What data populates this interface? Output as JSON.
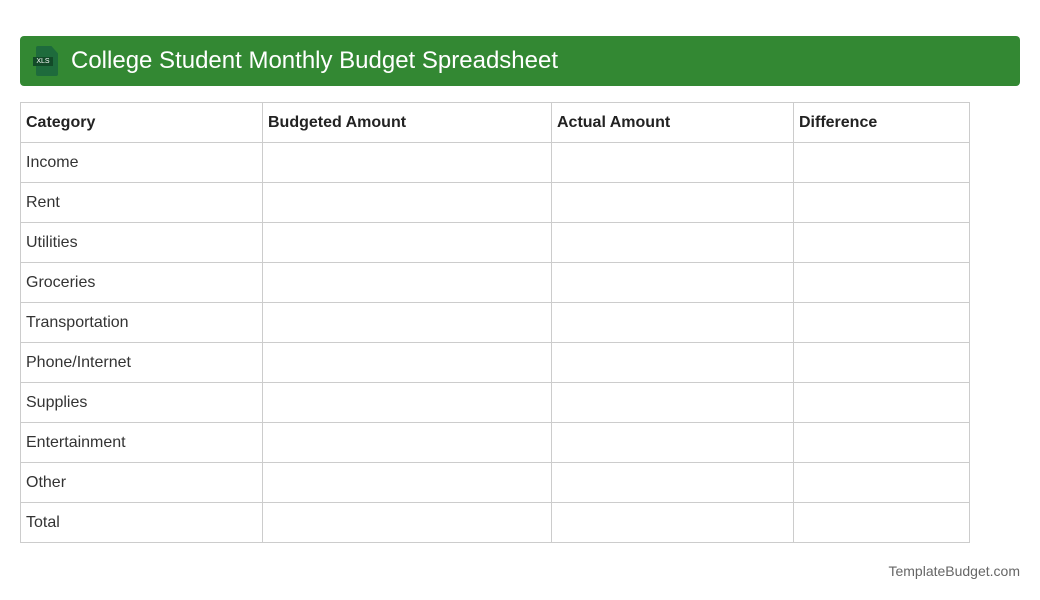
{
  "header": {
    "title": "College Student Monthly Budget Spreadsheet",
    "icon": "xls-file-icon",
    "icon_label": "XLS",
    "color": "#338833"
  },
  "table": {
    "columns": [
      "Category",
      "Budgeted Amount",
      "Actual Amount",
      "Difference"
    ],
    "rows": [
      "Income",
      "Rent",
      "Utilities",
      "Groceries",
      "Transportation",
      "Phone/Internet",
      "Supplies",
      "Entertainment",
      "Other",
      "Total"
    ]
  },
  "footer": {
    "brand": "TemplateBudget.com"
  }
}
